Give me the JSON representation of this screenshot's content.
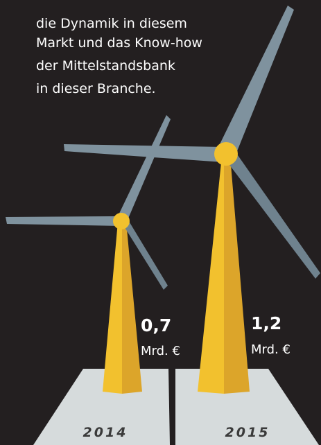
{
  "intro": {
    "lines": [
      "die Dynamik in diesem",
      "Markt und das Know-how",
      "der Mittelstandsbank",
      "in dieser Branche."
    ]
  },
  "turbines": [
    {
      "year": "2014",
      "value": "0,7",
      "unit": "Mrd. €"
    },
    {
      "year": "2015",
      "value": "1,2",
      "unit": "Mrd. €"
    }
  ]
}
